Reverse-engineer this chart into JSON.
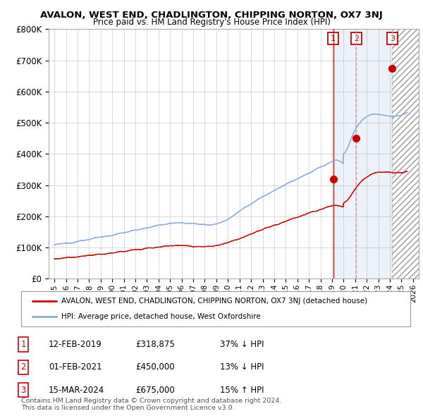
{
  "title": "AVALON, WEST END, CHADLINGTON, CHIPPING NORTON, OX7 3NJ",
  "subtitle": "Price paid vs. HM Land Registry's House Price Index (HPI)",
  "ylabel_ticks": [
    "£0",
    "£100K",
    "£200K",
    "£300K",
    "£400K",
    "£500K",
    "£600K",
    "£700K",
    "£800K"
  ],
  "ytick_values": [
    0,
    100000,
    200000,
    300000,
    400000,
    500000,
    600000,
    700000,
    800000
  ],
  "ylim": [
    0,
    800000
  ],
  "xlim_start": 1994.5,
  "xlim_end": 2026.5,
  "background_color": "#ffffff",
  "grid_color": "#cccccc",
  "hpi_color": "#88aadd",
  "price_color": "#cc0000",
  "transactions": [
    {
      "num": 1,
      "date": "12-FEB-2019",
      "price": 318875,
      "year": 2019.1,
      "pct": "37%",
      "dir": "↓"
    },
    {
      "num": 2,
      "date": "01-FEB-2021",
      "price": 450000,
      "year": 2021.1,
      "pct": "13%",
      "dir": "↓"
    },
    {
      "num": 3,
      "date": "15-MAR-2024",
      "price": 675000,
      "year": 2024.2,
      "pct": "15%",
      "dir": "↑"
    }
  ],
  "legend_label_red": "AVALON, WEST END, CHADLINGTON, CHIPPING NORTON, OX7 3NJ (detached house)",
  "legend_label_blue": "HPI: Average price, detached house, West Oxfordshire",
  "footer1": "Contains HM Land Registry data © Crown copyright and database right 2024.",
  "footer2": "This data is licensed under the Open Government Licence v3.0."
}
